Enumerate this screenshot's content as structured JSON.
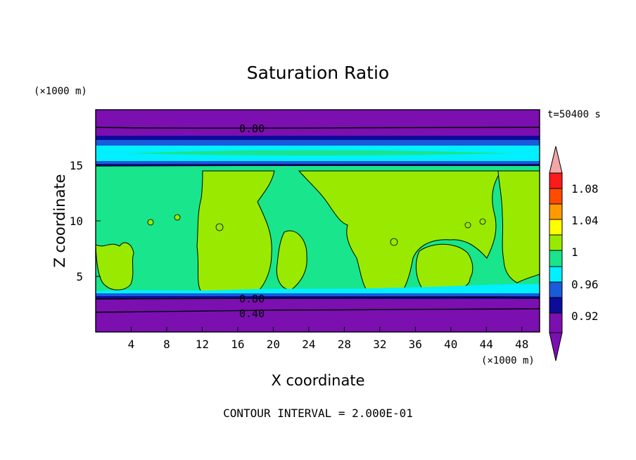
{
  "chart_data": {
    "type": "heatmap",
    "title": "Saturation Ratio",
    "xlabel": "X coordinate",
    "ylabel": "Z coordinate",
    "x_unit": "(×1000 m)",
    "y_unit": "(×1000 m)",
    "time_label": "t=50400 s",
    "footer": "CONTOUR INTERVAL = 2.000E-01",
    "x_ticks": [
      "4",
      "8",
      "12",
      "16",
      "20",
      "24",
      "28",
      "32",
      "36",
      "40",
      "44",
      "48"
    ],
    "y_ticks": [
      "5",
      "10",
      "15"
    ],
    "xlim": [
      0,
      50
    ],
    "ylim": [
      0,
      20
    ],
    "colorbar": {
      "labels": [
        "1.08",
        "1.04",
        "1",
        "0.96",
        "0.92"
      ],
      "colors": {
        "purple": "#7b0fb0",
        "navy": "#0c0c9a",
        "blue": "#1a5bdc",
        "cyan": "#00f0ff",
        "mint": "#19e58c",
        "lime": "#99ea00",
        "yellow": "#ffff00",
        "orange": "#ff9a00",
        "redorange": "#ff4c00",
        "red": "#ff1a1a",
        "pink": "#f3a6a6"
      }
    },
    "contour_labels": [
      "0.80",
      "0.80",
      "0.40"
    ]
  }
}
